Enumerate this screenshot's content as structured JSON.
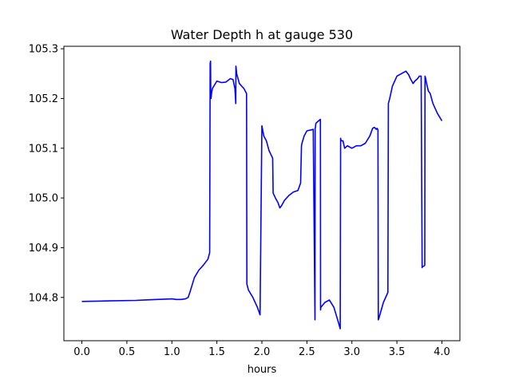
{
  "chart_data": {
    "type": "line",
    "title": "Water Depth h at gauge 530",
    "xlabel": "hours",
    "ylabel": "",
    "xlim": [
      -0.2,
      4.2
    ],
    "ylim": [
      104.713,
      105.305
    ],
    "xticks": [
      0.0,
      0.5,
      1.0,
      1.5,
      2.0,
      2.5,
      3.0,
      3.5,
      4.0
    ],
    "xtick_labels": [
      "0.0",
      "0.5",
      "1.0",
      "1.5",
      "2.0",
      "2.5",
      "3.0",
      "3.5",
      "4.0"
    ],
    "yticks": [
      104.8,
      104.9,
      105.0,
      105.1,
      105.2,
      105.3
    ],
    "ytick_labels": [
      "104.8",
      "104.9",
      "105.0",
      "105.1",
      "105.2",
      "105.3"
    ],
    "grid": false,
    "series": [
      {
        "color": "#0000ff",
        "x": [
          0.0,
          0.3,
          0.6,
          0.7,
          1.0,
          1.05,
          1.1,
          1.15,
          1.18,
          1.2,
          1.25,
          1.3,
          1.35,
          1.4,
          1.42,
          1.425,
          1.43,
          1.432,
          1.435,
          1.44,
          1.45,
          1.5,
          1.55,
          1.6,
          1.65,
          1.68,
          1.7,
          1.71,
          1.712,
          1.714,
          1.72,
          1.75,
          1.8,
          1.83,
          1.833,
          1.85,
          1.9,
          1.95,
          1.98,
          2.0,
          2.005,
          2.02,
          2.05,
          2.08,
          2.12,
          2.125,
          2.15,
          2.18,
          2.2,
          2.22,
          2.25,
          2.3,
          2.35,
          2.4,
          2.43,
          2.44,
          2.445,
          2.47,
          2.5,
          2.55,
          2.57,
          2.59,
          2.592,
          2.595,
          2.6,
          2.61,
          2.63,
          2.65,
          2.652,
          2.655,
          2.7,
          2.75,
          2.8,
          2.85,
          2.87,
          2.875,
          2.88,
          2.9,
          2.92,
          2.95,
          3.0,
          3.05,
          3.1,
          3.15,
          3.2,
          3.23,
          3.25,
          3.27,
          3.28,
          3.29,
          3.293,
          3.3,
          3.35,
          3.4,
          3.405,
          3.42,
          3.45,
          3.5,
          3.55,
          3.6,
          3.63,
          3.65,
          3.68,
          3.7,
          3.73,
          3.75,
          3.77,
          3.78,
          3.782,
          3.8,
          3.81,
          3.812,
          3.82,
          3.83,
          3.85,
          3.87,
          3.9,
          3.95,
          4.0
        ],
        "y": [
          104.792,
          104.793,
          104.794,
          104.795,
          104.797,
          104.796,
          104.796,
          104.797,
          104.8,
          104.81,
          104.84,
          104.855,
          104.865,
          104.877,
          104.89,
          105.27,
          105.275,
          105.2,
          105.2,
          105.21,
          105.22,
          105.235,
          105.232,
          105.233,
          105.24,
          105.238,
          105.22,
          105.19,
          105.265,
          105.26,
          105.25,
          105.23,
          105.22,
          105.21,
          104.827,
          104.815,
          104.8,
          104.78,
          104.765,
          105.145,
          105.14,
          105.125,
          105.115,
          105.095,
          105.08,
          105.01,
          105.0,
          104.99,
          104.98,
          104.985,
          104.995,
          105.005,
          105.012,
          105.015,
          105.03,
          105.105,
          105.11,
          105.125,
          105.135,
          105.137,
          105.138,
          104.755,
          105.14,
          105.142,
          105.15,
          105.152,
          105.155,
          105.158,
          104.775,
          104.78,
          104.79,
          104.795,
          104.78,
          104.75,
          104.737,
          105.12,
          105.115,
          105.115,
          105.1,
          105.105,
          105.1,
          105.105,
          105.105,
          105.11,
          105.125,
          105.14,
          105.142,
          105.138,
          105.14,
          105.137,
          104.755,
          104.758,
          104.79,
          104.81,
          105.19,
          105.2,
          105.225,
          105.245,
          105.25,
          105.255,
          105.248,
          105.24,
          105.23,
          105.235,
          105.24,
          105.245,
          105.245,
          104.86,
          104.862,
          104.863,
          104.865,
          105.245,
          105.24,
          105.23,
          105.215,
          105.21,
          105.19,
          105.17,
          105.155
        ]
      }
    ]
  }
}
